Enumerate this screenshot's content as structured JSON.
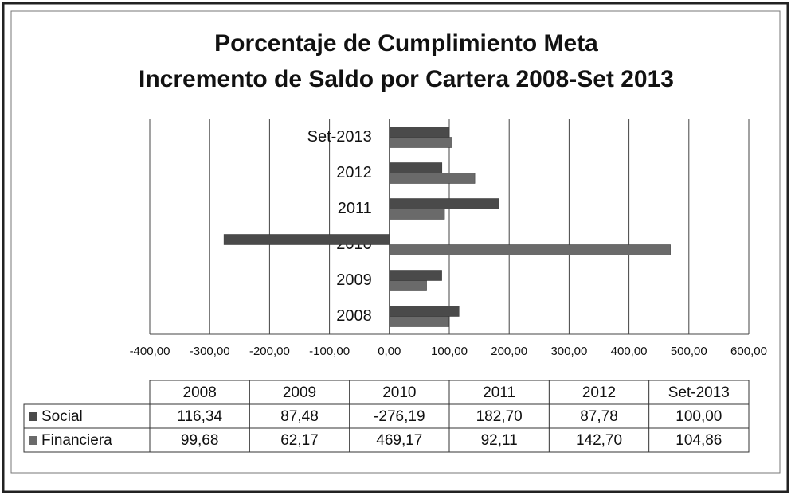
{
  "chart_data": {
    "type": "bar",
    "orientation": "horizontal",
    "title": [
      "Porcentaje de Cumplimiento Meta",
      "Incremento de Saldo por Cartera 2008-Set 2013"
    ],
    "categories": [
      "2008",
      "2009",
      "2010",
      "2011",
      "2012",
      "Set-2013"
    ],
    "series": [
      {
        "name": "Social",
        "color": "#4a4a4a",
        "values": [
          116.34,
          87.48,
          -276.19,
          182.7,
          87.78,
          100.0
        ],
        "value_labels": [
          "116,34",
          "87,48",
          "-276,19",
          "182,70",
          "87,78",
          "100,00"
        ]
      },
      {
        "name": "Financiera",
        "color": "#6a6a6a",
        "values": [
          99.68,
          62.17,
          469.17,
          92.11,
          142.7,
          104.86
        ],
        "value_labels": [
          "99,68",
          "62,17",
          "469,17",
          "92,11",
          "142,70",
          "104,86"
        ]
      }
    ],
    "xlim": [
      -400,
      600
    ],
    "xticks": [
      {
        "value": -400,
        "label": "-400,00"
      },
      {
        "value": -300,
        "label": "-300,00"
      },
      {
        "value": -200,
        "label": "-200,00"
      },
      {
        "value": -100,
        "label": "-100,00"
      },
      {
        "value": 0,
        "label": "0,00"
      },
      {
        "value": 100,
        "label": "100,00"
      },
      {
        "value": 200,
        "label": "200,00"
      },
      {
        "value": 300,
        "label": "300,00"
      },
      {
        "value": 400,
        "label": "400,00"
      },
      {
        "value": 500,
        "label": "500,00"
      },
      {
        "value": 600,
        "label": "600,00"
      }
    ],
    "grid": true,
    "legend": "table"
  }
}
